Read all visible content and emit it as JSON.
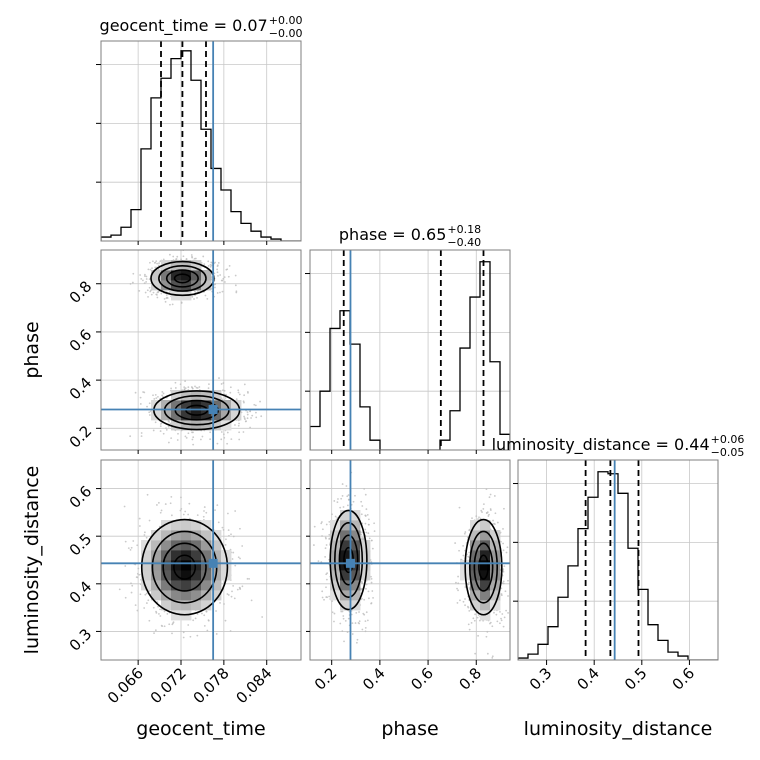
{
  "chart_data": {
    "type": "corner",
    "truth_color": "#4682b4",
    "hist_color": "#000000",
    "params": [
      {
        "name": "geocent_time",
        "label": "geocent_time",
        "range": [
          0.0608,
          0.0888
        ],
        "ticks": [
          0.066,
          0.072,
          0.078,
          0.084
        ],
        "tick_labels": [
          "0.066",
          "0.072",
          "0.078",
          "0.084"
        ],
        "truth": 0.0765,
        "quantiles": [
          0.0692,
          0.0722,
          0.0755
        ],
        "title_main": "geocent_time = 0.07",
        "title_plus": "+0.00",
        "title_minus": "−0.00",
        "hist": {
          "edges": [
            0.0608,
            0.0622,
            0.0636,
            0.065,
            0.0664,
            0.0678,
            0.0692,
            0.0706,
            0.072,
            0.0734,
            0.0748,
            0.0762,
            0.0776,
            0.079,
            0.0804,
            0.0818,
            0.0832,
            0.0846,
            0.086,
            0.0874,
            0.0888
          ],
          "counts": [
            0.02,
            0.03,
            0.07,
            0.16,
            0.47,
            0.73,
            0.83,
            0.93,
            0.97,
            0.82,
            0.57,
            0.37,
            0.26,
            0.15,
            0.09,
            0.05,
            0.02,
            0.01,
            0.0,
            0.0
          ],
          "yticks": [
            0.3,
            0.6,
            0.9
          ]
        }
      },
      {
        "name": "phase",
        "label": "phase",
        "range": [
          0.11,
          0.94
        ],
        "ticks": [
          0.2,
          0.4,
          0.6,
          0.8
        ],
        "tick_labels": [
          "0.2",
          "0.4",
          "0.6",
          "0.8"
        ],
        "truth": 0.278,
        "quantiles": [
          0.25,
          0.653,
          0.83
        ],
        "title_main": "phase = 0.65",
        "title_plus": "+0.18",
        "title_minus": "−0.40",
        "hist": {
          "edges": [
            0.11,
            0.1515,
            0.193,
            0.2345,
            0.276,
            0.3175,
            0.359,
            0.4005,
            0.442,
            0.4835,
            0.525,
            0.5665,
            0.608,
            0.6495,
            0.691,
            0.7325,
            0.774,
            0.8155,
            0.857,
            0.8985,
            0.94
          ],
          "counts": [
            0.12,
            0.3,
            0.62,
            0.71,
            0.54,
            0.22,
            0.05,
            0.0,
            0.0,
            0.0,
            0.0,
            0.0,
            0.0,
            0.05,
            0.2,
            0.52,
            0.78,
            0.96,
            0.45,
            0.08
          ],
          "yticks": [
            0.3,
            0.6,
            0.9
          ]
        }
      },
      {
        "name": "luminosity_distance",
        "label": "luminosity_distance",
        "range": [
          0.24,
          0.66
        ],
        "ticks": [
          0.3,
          0.4,
          0.5,
          0.6
        ],
        "tick_labels": [
          "0.3",
          "0.4",
          "0.5",
          "0.6"
        ],
        "truth": 0.443,
        "quantiles": [
          0.382,
          0.434,
          0.493
        ],
        "title_main": "luminosity_distance = 0.44",
        "title_plus": "+0.06",
        "title_minus": "−0.05",
        "hist": {
          "edges": [
            0.24,
            0.261,
            0.282,
            0.303,
            0.324,
            0.345,
            0.366,
            0.387,
            0.408,
            0.429,
            0.45,
            0.471,
            0.492,
            0.513,
            0.534,
            0.555,
            0.576,
            0.597,
            0.618,
            0.639,
            0.66
          ],
          "counts": [
            0.01,
            0.03,
            0.08,
            0.17,
            0.32,
            0.48,
            0.67,
            0.83,
            0.96,
            0.95,
            0.85,
            0.57,
            0.36,
            0.18,
            0.1,
            0.04,
            0.02,
            0.0,
            0.0,
            0.0
          ],
          "yticks": [
            0.3,
            0.6,
            0.9
          ]
        }
      }
    ],
    "pairs": [
      {
        "x": "geocent_time",
        "y": "phase",
        "modes": [
          {
            "cx": 0.0722,
            "cy": 0.822,
            "sx": 0.0022,
            "sy": 0.035
          },
          {
            "cx": 0.0742,
            "cy": 0.275,
            "sx": 0.003,
            "sy": 0.04
          }
        ]
      },
      {
        "x": "geocent_time",
        "y": "luminosity_distance",
        "modes": [
          {
            "cx": 0.0725,
            "cy": 0.435,
            "sx": 0.003,
            "sy": 0.05
          }
        ]
      },
      {
        "x": "phase",
        "y": "luminosity_distance",
        "modes": [
          {
            "cx": 0.27,
            "cy": 0.45,
            "sx": 0.038,
            "sy": 0.052
          },
          {
            "cx": 0.83,
            "cy": 0.435,
            "sx": 0.038,
            "sy": 0.05
          }
        ]
      }
    ]
  }
}
